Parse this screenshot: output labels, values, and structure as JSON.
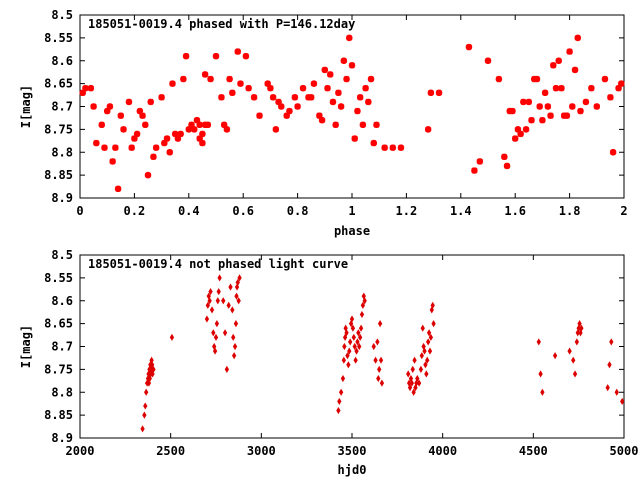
{
  "chart_data": [
    {
      "type": "scatter",
      "title": "185051-0019.4 phased with P=146.12day",
      "xlabel": "phase",
      "ylabel": "I[mag]",
      "xlim": [
        0,
        2
      ],
      "ylim": [
        8.9,
        8.5
      ],
      "y_inverted": true,
      "xticks": [
        "0",
        "0.2",
        "0.4",
        "0.6",
        "0.8",
        "1",
        "1.2",
        "1.4",
        "1.6",
        "1.8",
        "2"
      ],
      "yticks": [
        "8.5",
        "8.55",
        "8.6",
        "8.65",
        "8.7",
        "8.75",
        "8.8",
        "8.85",
        "8.9"
      ],
      "marker": "star",
      "color": "#ff0000",
      "grid": false,
      "series": [
        {
          "points": [
            [
              0.01,
              8.67
            ],
            [
              0.02,
              8.66
            ],
            [
              0.04,
              8.66
            ],
            [
              0.05,
              8.7
            ],
            [
              0.06,
              8.78
            ],
            [
              0.08,
              8.74
            ],
            [
              0.09,
              8.79
            ],
            [
              0.1,
              8.71
            ],
            [
              0.11,
              8.7
            ],
            [
              0.12,
              8.82
            ],
            [
              0.13,
              8.79
            ],
            [
              0.14,
              8.88
            ],
            [
              0.15,
              8.72
            ],
            [
              0.16,
              8.75
            ],
            [
              0.18,
              8.69
            ],
            [
              0.19,
              8.79
            ],
            [
              0.2,
              8.77
            ],
            [
              0.21,
              8.76
            ],
            [
              0.22,
              8.71
            ],
            [
              0.23,
              8.72
            ],
            [
              0.24,
              8.74
            ],
            [
              0.25,
              8.85
            ],
            [
              0.26,
              8.69
            ],
            [
              0.27,
              8.81
            ],
            [
              0.28,
              8.79
            ],
            [
              0.3,
              8.68
            ],
            [
              0.31,
              8.78
            ],
            [
              0.32,
              8.77
            ],
            [
              0.33,
              8.8
            ],
            [
              0.34,
              8.65
            ],
            [
              0.35,
              8.76
            ],
            [
              0.36,
              8.77
            ],
            [
              0.37,
              8.76
            ],
            [
              0.38,
              8.64
            ],
            [
              0.39,
              8.59
            ],
            [
              0.4,
              8.75
            ],
            [
              0.41,
              8.74
            ],
            [
              0.42,
              8.75
            ],
            [
              0.43,
              8.73
            ],
            [
              0.44,
              8.74
            ],
            [
              0.45,
              8.76
            ],
            [
              0.46,
              8.74
            ],
            [
              0.44,
              8.77
            ],
            [
              0.45,
              8.78
            ],
            [
              0.47,
              8.74
            ],
            [
              0.46,
              8.63
            ],
            [
              0.48,
              8.64
            ],
            [
              0.5,
              8.59
            ],
            [
              0.52,
              8.68
            ],
            [
              0.53,
              8.74
            ],
            [
              0.54,
              8.75
            ],
            [
              0.55,
              8.64
            ],
            [
              0.56,
              8.67
            ],
            [
              0.58,
              8.58
            ],
            [
              0.59,
              8.65
            ],
            [
              0.61,
              8.59
            ],
            [
              0.62,
              8.66
            ],
            [
              0.64,
              8.68
            ],
            [
              0.66,
              8.72
            ],
            [
              0.69,
              8.65
            ],
            [
              0.7,
              8.66
            ],
            [
              0.71,
              8.68
            ],
            [
              0.72,
              8.75
            ],
            [
              0.73,
              8.69
            ],
            [
              0.74,
              8.7
            ],
            [
              0.76,
              8.72
            ],
            [
              0.77,
              8.71
            ],
            [
              0.79,
              8.68
            ],
            [
              0.8,
              8.7
            ],
            [
              0.82,
              8.66
            ],
            [
              0.84,
              8.68
            ],
            [
              0.85,
              8.68
            ],
            [
              0.86,
              8.65
            ],
            [
              0.88,
              8.72
            ],
            [
              0.89,
              8.73
            ],
            [
              0.9,
              8.62
            ],
            [
              0.91,
              8.66
            ],
            [
              0.92,
              8.63
            ],
            [
              0.93,
              8.69
            ],
            [
              0.94,
              8.74
            ],
            [
              0.95,
              8.67
            ],
            [
              0.96,
              8.7
            ],
            [
              0.97,
              8.6
            ],
            [
              0.98,
              8.64
            ],
            [
              0.99,
              8.55
            ],
            [
              1.0,
              8.61
            ],
            [
              1.01,
              8.77
            ],
            [
              1.02,
              8.71
            ],
            [
              1.03,
              8.68
            ],
            [
              1.04,
              8.74
            ],
            [
              1.05,
              8.66
            ],
            [
              1.06,
              8.69
            ],
            [
              1.07,
              8.64
            ],
            [
              1.08,
              8.78
            ],
            [
              1.09,
              8.74
            ],
            [
              1.12,
              8.79
            ],
            [
              1.15,
              8.79
            ],
            [
              1.18,
              8.79
            ],
            [
              1.28,
              8.75
            ],
            [
              1.29,
              8.67
            ],
            [
              1.32,
              8.67
            ],
            [
              1.43,
              8.57
            ],
            [
              1.45,
              8.84
            ],
            [
              1.47,
              8.82
            ],
            [
              1.5,
              8.6
            ],
            [
              1.54,
              8.64
            ],
            [
              1.56,
              8.81
            ],
            [
              1.57,
              8.83
            ],
            [
              1.58,
              8.71
            ],
            [
              1.59,
              8.71
            ],
            [
              1.6,
              8.77
            ],
            [
              1.61,
              8.75
            ],
            [
              1.62,
              8.76
            ],
            [
              1.63,
              8.69
            ],
            [
              1.64,
              8.75
            ],
            [
              1.65,
              8.69
            ],
            [
              1.66,
              8.73
            ],
            [
              1.67,
              8.64
            ],
            [
              1.68,
              8.64
            ],
            [
              1.69,
              8.7
            ],
            [
              1.7,
              8.73
            ],
            [
              1.71,
              8.67
            ],
            [
              1.72,
              8.7
            ],
            [
              1.73,
              8.72
            ],
            [
              1.74,
              8.61
            ],
            [
              1.75,
              8.66
            ],
            [
              1.76,
              8.6
            ],
            [
              1.77,
              8.66
            ],
            [
              1.78,
              8.72
            ],
            [
              1.79,
              8.72
            ],
            [
              1.8,
              8.58
            ],
            [
              1.81,
              8.7
            ],
            [
              1.82,
              8.62
            ],
            [
              1.83,
              8.55
            ],
            [
              1.84,
              8.71
            ],
            [
              1.86,
              8.69
            ],
            [
              1.88,
              8.66
            ],
            [
              1.9,
              8.7
            ],
            [
              1.93,
              8.64
            ],
            [
              1.95,
              8.68
            ],
            [
              1.96,
              8.8
            ],
            [
              1.98,
              8.66
            ],
            [
              1.99,
              8.65
            ]
          ]
        }
      ]
    },
    {
      "type": "scatter",
      "title": "185051-0019.4 not phased light curve",
      "xlabel": "hjd0",
      "ylabel": "I[mag]",
      "xlim": [
        2000,
        5000
      ],
      "ylim": [
        8.9,
        8.5
      ],
      "y_inverted": true,
      "xticks": [
        "2000",
        "2500",
        "3000",
        "3500",
        "4000",
        "4500",
        "5000"
      ],
      "yticks": [
        "8.5",
        "8.55",
        "8.6",
        "8.65",
        "8.7",
        "8.75",
        "8.8",
        "8.85",
        "8.9"
      ],
      "marker": "diamond",
      "color": "#dd0000",
      "grid": false,
      "series": [
        {
          "points": [
            [
              2345,
              8.88
            ],
            [
              2355,
              8.85
            ],
            [
              2360,
              8.83
            ],
            [
              2365,
              8.8
            ],
            [
              2370,
              8.78
            ],
            [
              2375,
              8.77
            ],
            [
              2378,
              8.76
            ],
            [
              2380,
              8.78
            ],
            [
              2383,
              8.75
            ],
            [
              2385,
              8.77
            ],
            [
              2388,
              8.74
            ],
            [
              2390,
              8.76
            ],
            [
              2393,
              8.75
            ],
            [
              2395,
              8.73
            ],
            [
              2398,
              8.74
            ],
            [
              2400,
              8.76
            ],
            [
              2405,
              8.75
            ],
            [
              2507,
              8.68
            ],
            [
              2700,
              8.64
            ],
            [
              2705,
              8.61
            ],
            [
              2710,
              8.59
            ],
            [
              2715,
              8.6
            ],
            [
              2720,
              8.58
            ],
            [
              2728,
              8.62
            ],
            [
              2735,
              8.67
            ],
            [
              2740,
              8.7
            ],
            [
              2745,
              8.71
            ],
            [
              2750,
              8.68
            ],
            [
              2755,
              8.65
            ],
            [
              2760,
              8.6
            ],
            [
              2765,
              8.58
            ],
            [
              2770,
              8.55
            ],
            [
              2790,
              8.6
            ],
            [
              2800,
              8.67
            ],
            [
              2810,
              8.75
            ],
            [
              2820,
              8.61
            ],
            [
              2830,
              8.57
            ],
            [
              2840,
              8.62
            ],
            [
              2845,
              8.68
            ],
            [
              2850,
              8.72
            ],
            [
              2855,
              8.7
            ],
            [
              2860,
              8.65
            ],
            [
              2863,
              8.59
            ],
            [
              2866,
              8.57
            ],
            [
              2870,
              8.56
            ],
            [
              2875,
              8.6
            ],
            [
              2880,
              8.55
            ],
            [
              3425,
              8.84
            ],
            [
              3430,
              8.82
            ],
            [
              3440,
              8.8
            ],
            [
              3450,
              8.77
            ],
            [
              3455,
              8.73
            ],
            [
              3458,
              8.7
            ],
            [
              3462,
              8.68
            ],
            [
              3465,
              8.66
            ],
            [
              3470,
              8.67
            ],
            [
              3475,
              8.72
            ],
            [
              3480,
              8.74
            ],
            [
              3485,
              8.71
            ],
            [
              3490,
              8.69
            ],
            [
              3495,
              8.65
            ],
            [
              3500,
              8.64
            ],
            [
              3505,
              8.66
            ],
            [
              3510,
              8.68
            ],
            [
              3515,
              8.7
            ],
            [
              3520,
              8.73
            ],
            [
              3525,
              8.71
            ],
            [
              3530,
              8.69
            ],
            [
              3535,
              8.67
            ],
            [
              3540,
              8.7
            ],
            [
              3545,
              8.68
            ],
            [
              3550,
              8.66
            ],
            [
              3555,
              8.63
            ],
            [
              3560,
              8.61
            ],
            [
              3565,
              8.59
            ],
            [
              3570,
              8.6
            ],
            [
              3620,
              8.7
            ],
            [
              3630,
              8.73
            ],
            [
              3640,
              8.69
            ],
            [
              3645,
              8.77
            ],
            [
              3650,
              8.75
            ],
            [
              3655,
              8.65
            ],
            [
              3660,
              8.73
            ],
            [
              3665,
              8.78
            ],
            [
              3810,
              8.76
            ],
            [
              3815,
              8.78
            ],
            [
              3820,
              8.79
            ],
            [
              3825,
              8.77
            ],
            [
              3830,
              8.78
            ],
            [
              3835,
              8.75
            ],
            [
              3840,
              8.8
            ],
            [
              3845,
              8.73
            ],
            [
              3850,
              8.79
            ],
            [
              3855,
              8.78
            ],
            [
              3860,
              8.77
            ],
            [
              3870,
              8.78
            ],
            [
              3880,
              8.75
            ],
            [
              3885,
              8.72
            ],
            [
              3890,
              8.66
            ],
            [
              3895,
              8.7
            ],
            [
              3900,
              8.71
            ],
            [
              3905,
              8.74
            ],
            [
              3910,
              8.76
            ],
            [
              3915,
              8.73
            ],
            [
              3920,
              8.69
            ],
            [
              3925,
              8.67
            ],
            [
              3930,
              8.71
            ],
            [
              3935,
              8.68
            ],
            [
              3940,
              8.62
            ],
            [
              3945,
              8.61
            ],
            [
              3950,
              8.65
            ],
            [
              4530,
              8.69
            ],
            [
              4540,
              8.76
            ],
            [
              4550,
              8.8
            ],
            [
              4620,
              8.72
            ],
            [
              4700,
              8.71
            ],
            [
              4720,
              8.73
            ],
            [
              4730,
              8.76
            ],
            [
              4740,
              8.69
            ],
            [
              4745,
              8.67
            ],
            [
              4750,
              8.66
            ],
            [
              4755,
              8.65
            ],
            [
              4760,
              8.67
            ],
            [
              4765,
              8.66
            ],
            [
              4910,
              8.79
            ],
            [
              4920,
              8.74
            ],
            [
              4930,
              8.69
            ],
            [
              4960,
              8.8
            ],
            [
              4990,
              8.82
            ]
          ]
        }
      ]
    }
  ]
}
